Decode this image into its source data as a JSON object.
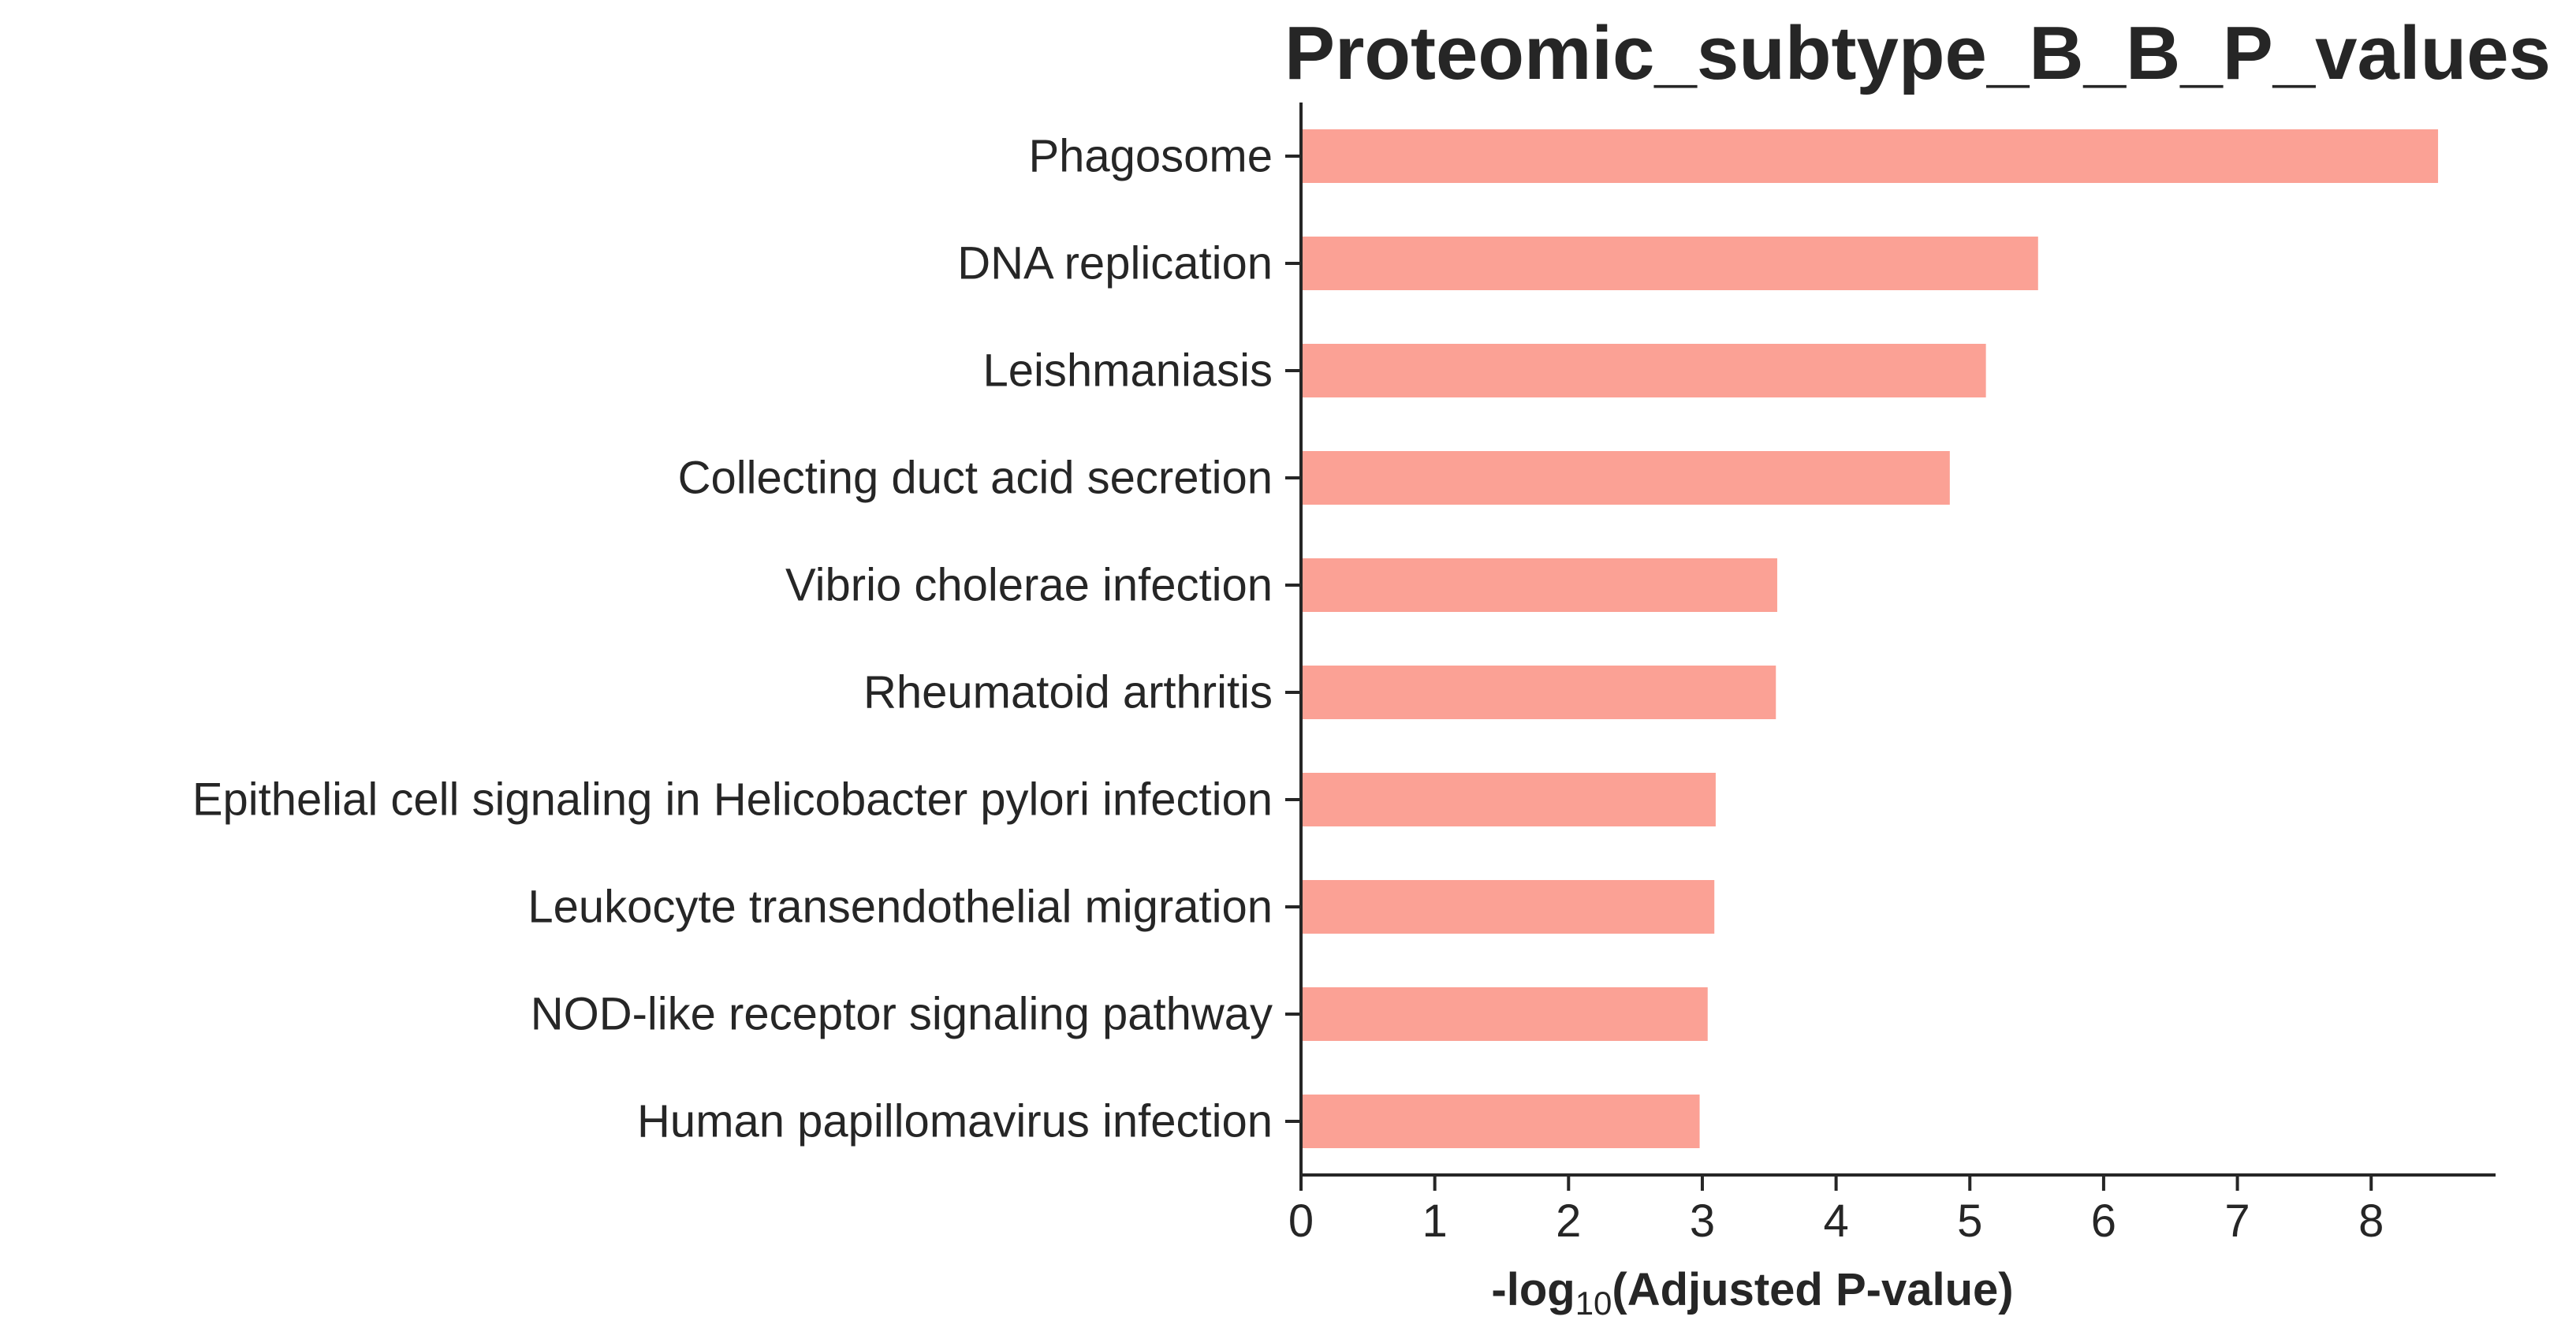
{
  "chart_data": {
    "type": "bar",
    "orientation": "horizontal",
    "title": "Proteomic_subtype_B_B_P_values",
    "xlabel": "-log10(Adjusted P-value)",
    "xlabel_parts": {
      "prefix": "-log",
      "subscript": "10",
      "suffix": "(Adjusted P-value)"
    },
    "ylabel": "",
    "categories": [
      "Phagosome",
      "DNA replication",
      "Leishmaniasis",
      "Collecting duct acid secretion",
      "Vibrio cholerae infection",
      "Rheumatoid arthritis",
      "Epithelial cell signaling in Helicobacter pylori infection",
      "Leukocyte transendothelial migration",
      "NOD-like receptor signaling pathway",
      "Human papillomavirus infection"
    ],
    "values": [
      8.5,
      5.51,
      5.12,
      4.85,
      3.56,
      3.55,
      3.1,
      3.09,
      3.04,
      2.98
    ],
    "xlim": [
      0,
      8.93
    ],
    "xticks": [
      "0",
      "1",
      "2",
      "3",
      "4",
      "5",
      "6",
      "7",
      "8"
    ],
    "grid": false,
    "legend": "none",
    "bar_color": "#fba195",
    "text_color": "#262626"
  }
}
